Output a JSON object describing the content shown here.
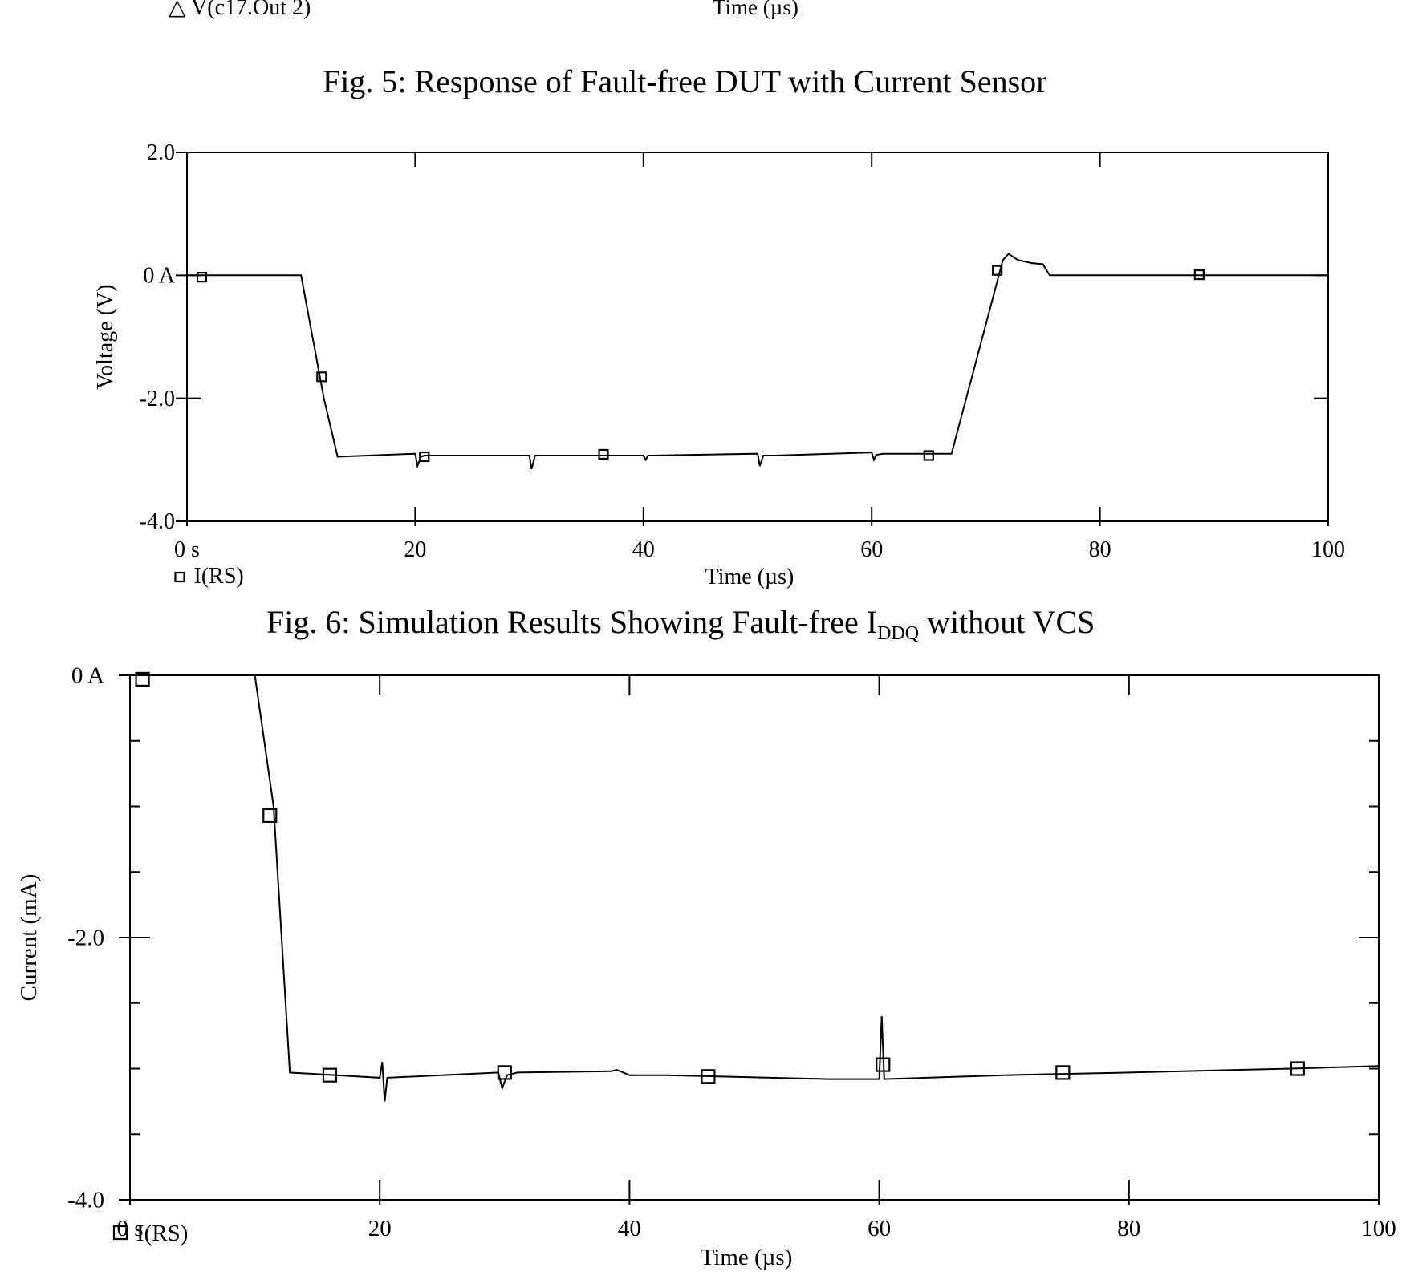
{
  "header": {
    "legend_prev": "△ V(c17.Out 2)",
    "xlabel_prev": "Time (µs)"
  },
  "captions": {
    "fig5": "Fig. 5:    Response of Fault-free DUT with Current Sensor",
    "fig6_pre": "Fig. 6:    Simulation Results Showing Fault-free I",
    "fig6_sub": "DDQ",
    "fig6_post": " without VCS"
  },
  "chart_data": [
    {
      "type": "line",
      "title": "",
      "xlabel": "Time (µs)",
      "ylabel": "Voltage (V)",
      "xlim": [
        0,
        100
      ],
      "ylim": [
        -4.0,
        2.0
      ],
      "xticks": [
        0,
        20,
        40,
        60,
        80,
        100
      ],
      "xtick_labels": [
        "0 s",
        "20",
        "40",
        "60",
        "80",
        "100"
      ],
      "yticks": [
        2.0,
        0,
        -2.0,
        -4.0
      ],
      "ytick_labels": [
        "2.0",
        "0 A",
        "-2.0",
        "-4.0"
      ],
      "legend": "bottom-left",
      "series": [
        {
          "name": "I(RS)",
          "marker": "square",
          "x": [
            0,
            10,
            11,
            12,
            13.2,
            20,
            20.2,
            20.5,
            20.8,
            21.5,
            30,
            30.2,
            30.5,
            31.5,
            40,
            40.2,
            40.4,
            40.8,
            50,
            50.2,
            50.5,
            51.5,
            60,
            60.2,
            60.4,
            61,
            67,
            70,
            71.5,
            72,
            72.8,
            74,
            75,
            75.6,
            76,
            80,
            90,
            100
          ],
          "y": [
            0,
            0,
            -1.0,
            -2.0,
            -2.95,
            -2.9,
            -3.1,
            -2.95,
            -2.93,
            -2.93,
            -2.93,
            -3.15,
            -2.93,
            -2.93,
            -2.93,
            -3.0,
            -2.93,
            -2.93,
            -2.9,
            -3.1,
            -2.93,
            -2.93,
            -2.88,
            -3.0,
            -2.92,
            -2.9,
            -2.9,
            -0.8,
            0.25,
            0.35,
            0.25,
            0.2,
            0.18,
            0.0,
            0.0,
            0.0,
            0.0,
            0.0
          ],
          "marker_x": [
            1.3,
            11.8,
            20.8,
            36.5,
            65,
            71,
            88.7
          ],
          "marker_y": [
            -0.03,
            -1.65,
            -2.95,
            -2.91,
            -2.93,
            0.08,
            0.01
          ]
        }
      ]
    },
    {
      "type": "line",
      "title": "",
      "xlabel": "Time (µs)",
      "ylabel": "Current (mA)",
      "xlim": [
        0,
        100
      ],
      "ylim": [
        -4.0,
        0.0
      ],
      "xticks": [
        0,
        20,
        40,
        60,
        80,
        100
      ],
      "xtick_labels": [
        "0 s",
        "20",
        "40",
        "60",
        "80",
        "100"
      ],
      "yticks": [
        0,
        -2.0,
        -4.0
      ],
      "ytick_labels": [
        "0 A",
        "-2.0",
        "-4.0"
      ],
      "legend": "bottom-left",
      "series": [
        {
          "name": "I(RS)",
          "marker": "square",
          "x": [
            0,
            10,
            11.5,
            12.8,
            20,
            20.2,
            20.4,
            20.6,
            29.5,
            29.8,
            30.2,
            31,
            38.5,
            39,
            40,
            43,
            56,
            60,
            60.2,
            60.4,
            70,
            80,
            93,
            100
          ],
          "y": [
            0,
            0,
            -1.0,
            -3.03,
            -3.07,
            -2.95,
            -3.25,
            -3.07,
            -3.03,
            -3.15,
            -3.05,
            -3.03,
            -3.02,
            -3.01,
            -3.05,
            -3.05,
            -3.08,
            -3.08,
            -2.6,
            -3.08,
            -3.05,
            -3.03,
            -3.0,
            -2.98
          ],
          "marker_x": [
            1,
            11.2,
            16,
            30,
            46.3,
            60.3,
            74.7,
            93.5
          ],
          "marker_y": [
            -0.03,
            -1.07,
            -3.05,
            -3.03,
            -3.06,
            -2.97,
            -3.03,
            -3.0
          ]
        }
      ]
    }
  ]
}
